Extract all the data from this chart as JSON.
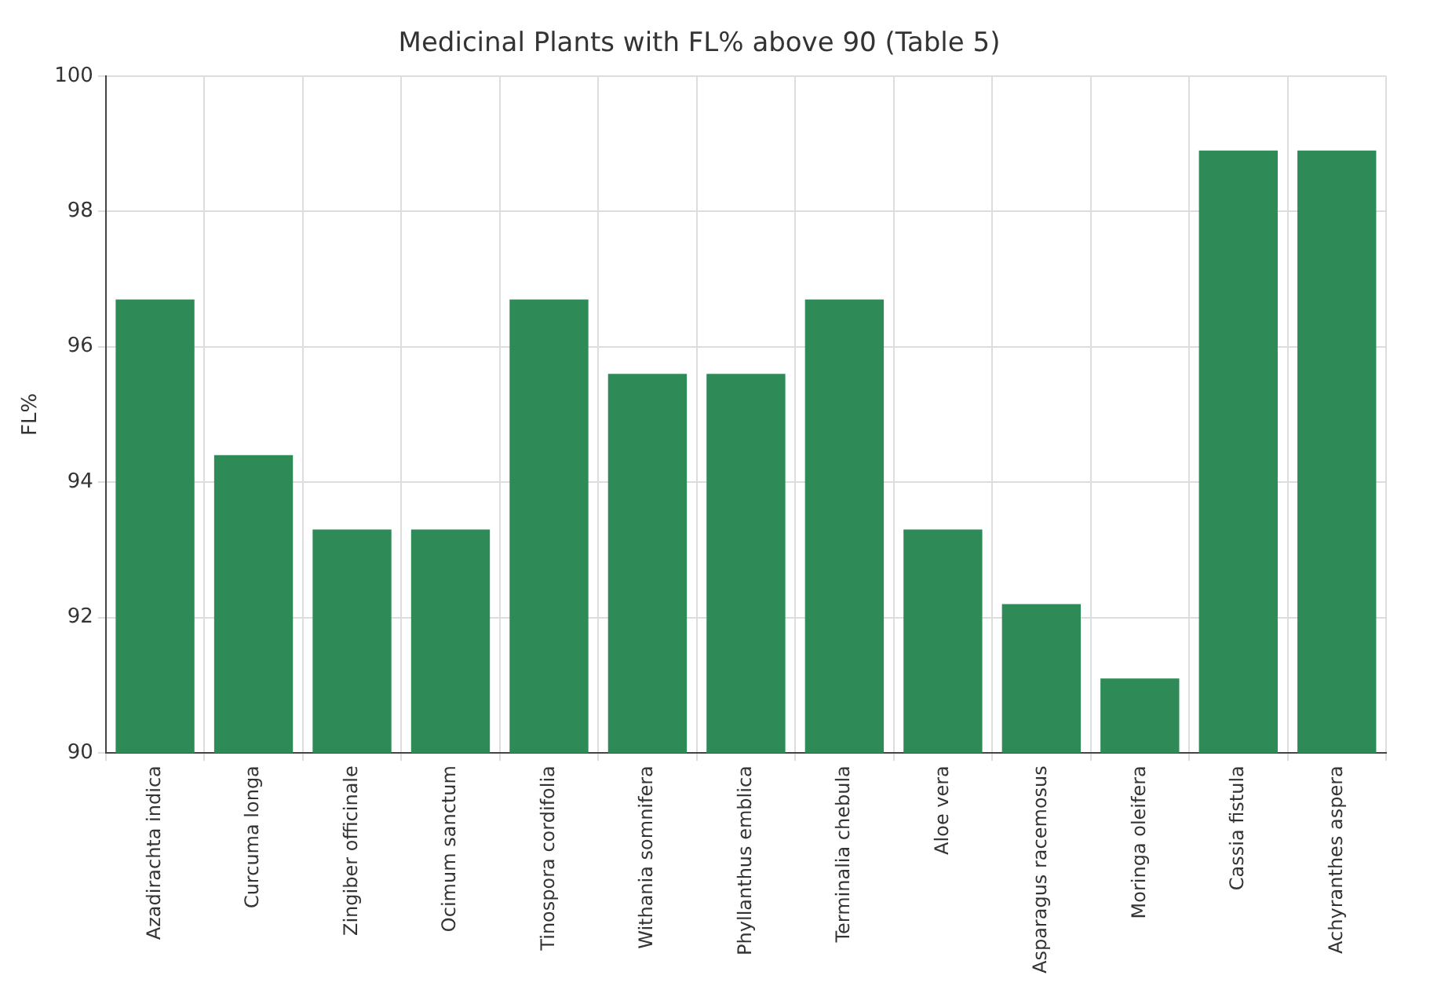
{
  "chart_data": {
    "type": "bar",
    "title": "Medicinal Plants with FL% above 90 (Table 5)",
    "ylabel": "FL%",
    "categories": [
      "Azadirachta indica",
      "Curcuma longa",
      "Zingiber officinale",
      "Ocimum sanctum",
      "Tinospora cordifolia",
      "Withania somnifera",
      "Phyllanthus emblica",
      "Terminalia chebula",
      "Aloe vera",
      "Asparagus racemosus",
      "Moringa oleifera",
      "Cassia fistula",
      "Achyranthes aspera"
    ],
    "values": [
      96.7,
      94.4,
      93.3,
      93.3,
      96.7,
      95.6,
      95.6,
      96.7,
      93.3,
      92.2,
      91.1,
      98.9,
      98.9
    ],
    "color": "#2e8b57",
    "ylim": [
      90,
      100
    ],
    "yticks": [
      90,
      92,
      94,
      96,
      98,
      100
    ],
    "grid": true
  }
}
